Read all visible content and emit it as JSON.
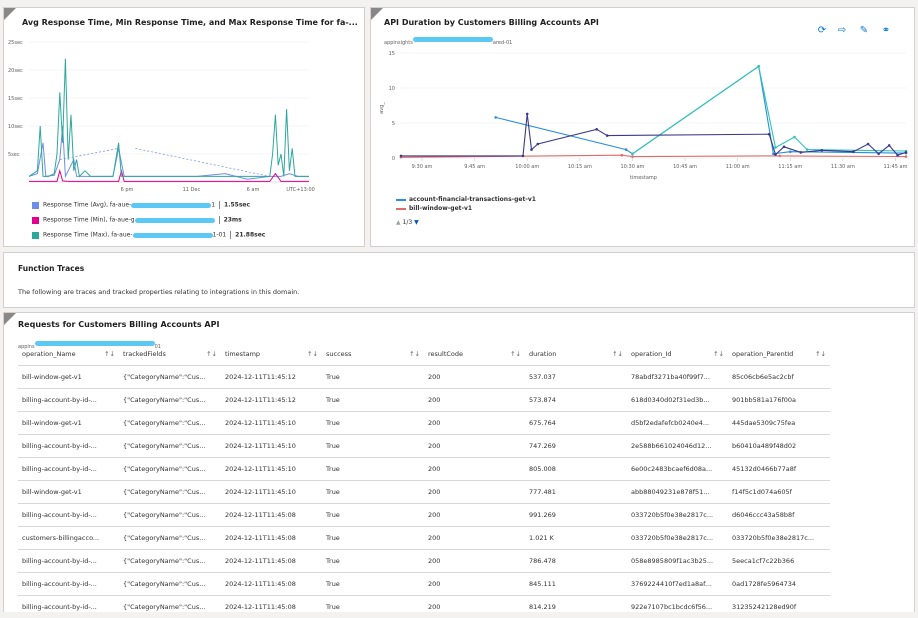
{
  "tile1": {
    "title": "Avg Response Time, Min Response Time, and Max Response Time for fa-...",
    "legend": [
      {
        "label": "Response Time (Avg), fa-aue-",
        "suffix": "1",
        "value": "1.55sec",
        "color": "#6d8ee8"
      },
      {
        "label": "Response Time (Min), fa-aue-g",
        "suffix": "",
        "value": "23ms",
        "color": "#e3008c"
      },
      {
        "label": "Response Time (Max), fa-aue-",
        "suffix": "1-01",
        "value": "21.88sec",
        "color": "#2ea89c"
      }
    ]
  },
  "tile2": {
    "title": "API Duration by Customers Billing Accounts API",
    "subtitle_prefix": "appinsights",
    "subtitle_suffix": "ared-01",
    "legend": [
      {
        "label": "account-financial-transactions-get-v1",
        "color": "#2a8de0"
      },
      {
        "label": "bill-window-get-v1",
        "color": "#e06b6b"
      }
    ],
    "pager": "1/3",
    "icons": [
      "refresh-icon",
      "share-icon",
      "edit-icon",
      "connect-icon"
    ]
  },
  "function_traces": {
    "title": "Function Traces",
    "description": "The following are traces and tracked properties relating to integrations in this domain."
  },
  "requests": {
    "title": "Requests for Customers Billing Accounts API",
    "subtitle_prefix": "appins",
    "subtitle_suffix": "01",
    "columns": [
      "operation_Name",
      "trackedFields",
      "timestamp",
      "success",
      "resultCode",
      "duration",
      "operation_Id",
      "operation_ParentId"
    ],
    "rows": [
      [
        "bill-window-get-v1",
        "{\"CategoryName\":\"Cus...",
        "2024-12-11T11:45:12",
        "True",
        "200",
        "537.037",
        "78abdf3271ba40f99f7...",
        "85c06cb6e5ac2cbf"
      ],
      [
        "billing-account-by-id-...",
        "{\"CategoryName\":\"Cus...",
        "2024-12-11T11:45:12",
        "True",
        "200",
        "573.874",
        "618d0340d02f31ed3b...",
        "901bb581a176f00a"
      ],
      [
        "bill-window-get-v1",
        "{\"CategoryName\":\"Cus...",
        "2024-12-11T11:45:10",
        "True",
        "200",
        "675.764",
        "d5bf2edafefcb0240e4...",
        "445dae5309c75fea"
      ],
      [
        "billing-account-by-id-...",
        "{\"CategoryName\":\"Cus...",
        "2024-12-11T11:45:10",
        "True",
        "200",
        "747.269",
        "2e588b661024046d12...",
        "b60410a489f48d02"
      ],
      [
        "billing-account-by-id-...",
        "{\"CategoryName\":\"Cus...",
        "2024-12-11T11:45:10",
        "True",
        "200",
        "805.008",
        "6e00c2483bcaef6d08a...",
        "45132d0466b77a8f"
      ],
      [
        "bill-window-get-v1",
        "{\"CategoryName\":\"Cus...",
        "2024-12-11T11:45:10",
        "True",
        "200",
        "777.481",
        "abb88049231e878f51...",
        "f14f5c1d074a605f"
      ],
      [
        "billing-account-by-id-...",
        "{\"CategoryName\":\"Cus...",
        "2024-12-11T11:45:08",
        "True",
        "200",
        "991.269",
        "033720b5f0e38e2817c...",
        "d6046ccc43a58b8f"
      ],
      [
        "customers-billingacco...",
        "{\"CategoryName\":\"Cus...",
        "2024-12-11T11:45:08",
        "True",
        "200",
        "1.021 K",
        "033720b5f0e38e2817c...",
        "033720b5f0e38e2817c..."
      ],
      [
        "billing-account-by-id-...",
        "{\"CategoryName\":\"Cus...",
        "2024-12-11T11:45:08",
        "True",
        "200",
        "786.478",
        "058e8985809f1ac3b25...",
        "5eeca1cf7c22b366"
      ],
      [
        "billing-account-by-id-...",
        "{\"CategoryName\":\"Cus...",
        "2024-12-11T11:45:08",
        "True",
        "200",
        "845.111",
        "3769224410f7ed1a8af...",
        "0ad1728fe5964734"
      ],
      [
        "billing-account-by-id-...",
        "{\"CategoryName\":\"Cus...",
        "2024-12-11T11:45:08",
        "True",
        "200",
        "814.219",
        "922e7107bc1bcdc6f56...",
        "31235242128ed90f"
      ]
    ]
  },
  "chart_data": [
    {
      "type": "line",
      "yticks": [
        "25sec",
        "20sec",
        "15sec",
        "10sec",
        "5sec"
      ],
      "xticks": [
        "6 pm",
        "11 Dec",
        "6 am",
        "UTC+13:00"
      ],
      "ylim": [
        0,
        25
      ],
      "series": [
        {
          "name": "Response Time (Avg)",
          "color": "#6d8ee8",
          "points": [
            [
              0,
              1
            ],
            [
              3,
              1.5
            ],
            [
              5,
              7
            ],
            [
              6,
              1
            ],
            [
              9,
              1.2
            ],
            [
              11,
              4
            ],
            [
              12,
              10
            ],
            [
              13,
              1
            ],
            [
              14,
              2
            ],
            [
              16,
              4
            ],
            [
              17,
              1
            ],
            [
              19,
              1
            ],
            [
              20,
              1
            ],
            [
              22,
              1
            ],
            [
              24,
              1
            ],
            [
              26,
              1
            ],
            [
              30,
              1
            ],
            [
              32,
              6
            ],
            [
              34,
              1
            ],
            [
              38,
              1
            ],
            [
              50,
              1
            ],
            [
              60,
              1
            ],
            [
              70,
              1.5
            ],
            [
              78,
              0.5
            ],
            [
              86,
              1
            ],
            [
              90,
              1
            ],
            [
              93,
              1.5
            ],
            [
              96,
              1
            ],
            [
              100,
              1
            ]
          ]
        },
        {
          "name": "Response Time (Min)",
          "color": "#e3008c",
          "points": [
            [
              0,
              0.1
            ],
            [
              10,
              0.1
            ],
            [
              11,
              2
            ],
            [
              12,
              0.2
            ],
            [
              14,
              0.1
            ],
            [
              20,
              0.1
            ],
            [
              32,
              0.1
            ],
            [
              33,
              2
            ],
            [
              34,
              0.1
            ],
            [
              60,
              0.1
            ],
            [
              86,
              0.1
            ],
            [
              88,
              1.5
            ],
            [
              90,
              0.1
            ],
            [
              100,
              0.1
            ]
          ]
        },
        {
          "name": "Response Time (Max)",
          "color": "#2ea89c",
          "points": [
            [
              0,
              1
            ],
            [
              3,
              2
            ],
            [
              4,
              10
            ],
            [
              5,
              1
            ],
            [
              7,
              1
            ],
            [
              9,
              1.5
            ],
            [
              10,
              5
            ],
            [
              11,
              16
            ],
            [
              12,
              7
            ],
            [
              13,
              22
            ],
            [
              14,
              4
            ],
            [
              15,
              12
            ],
            [
              16,
              2
            ],
            [
              17,
              4
            ],
            [
              18,
              1
            ],
            [
              20,
              2
            ],
            [
              22,
              1
            ],
            [
              26,
              1
            ],
            [
              30,
              1
            ],
            [
              32,
              7
            ],
            [
              33,
              1
            ],
            [
              40,
              1
            ],
            [
              50,
              1
            ],
            [
              60,
              1
            ],
            [
              70,
              1
            ],
            [
              86,
              1
            ],
            [
              87,
              5
            ],
            [
              88,
              12
            ],
            [
              89,
              3
            ],
            [
              90,
              5
            ],
            [
              91,
              1
            ],
            [
              92,
              13
            ],
            [
              93,
              2
            ],
            [
              94,
              6
            ],
            [
              95,
              1
            ],
            [
              96,
              1
            ],
            [
              100,
              1
            ]
          ]
        }
      ]
    },
    {
      "type": "line",
      "xlabel": "timestamp",
      "ylabel": "avg_",
      "ylim": [
        0,
        15
      ],
      "yticks": [
        0,
        5,
        10,
        15
      ],
      "xticks": [
        "9:30 am",
        "9:45 am",
        "10:00 am",
        "10:15 am",
        "10:30 am",
        "10:45 am",
        "11:00 am",
        "11:15 am",
        "11:30 am",
        "11:45 am"
      ],
      "xlim": [
        9.4,
        11.8
      ],
      "series": [
        {
          "name": "account-financial-transactions-get-v1",
          "color": "#2a8de0",
          "points": [
            [
              9.85,
              5.8
            ],
            [
              10.47,
              1.2
            ],
            [
              10.5,
              0.6
            ],
            [
              11.1,
              13.1
            ],
            [
              11.17,
              0.6
            ],
            [
              11.25,
              0.9
            ],
            [
              11.8,
              0.7
            ]
          ]
        },
        {
          "name": "bill-window-get-v1",
          "color": "#e06b6b",
          "points": [
            [
              9.4,
              0.1
            ],
            [
              10.45,
              0.4
            ],
            [
              10.5,
              0.2
            ],
            [
              11.2,
              0.3
            ],
            [
              11.8,
              0.2
            ]
          ]
        },
        {
          "name": "",
          "color": "#2ec4b6",
          "points": [
            [
              10.5,
              0.6
            ],
            [
              11.1,
              13.1
            ],
            [
              11.18,
              1.5
            ],
            [
              11.27,
              3.0
            ],
            [
              11.33,
              1.2
            ],
            [
              11.8,
              1.0
            ]
          ]
        },
        {
          "name": "",
          "color": "#3a3a8c",
          "points": [
            [
              9.4,
              0.3
            ],
            [
              9.98,
              0.3
            ],
            [
              10.0,
              6.3
            ],
            [
              10.02,
              1.2
            ],
            [
              10.05,
              2.0
            ],
            [
              10.33,
              4.1
            ],
            [
              10.38,
              3.2
            ],
            [
              11.15,
              3.4
            ],
            [
              11.18,
              0.5
            ],
            [
              11.22,
              1.6
            ],
            [
              11.3,
              0.8
            ],
            [
              11.4,
              1.1
            ],
            [
              11.55,
              0.9
            ],
            [
              11.62,
              2.0
            ],
            [
              11.67,
              0.6
            ],
            [
              11.72,
              1.8
            ],
            [
              11.76,
              0.4
            ],
            [
              11.8,
              0.8
            ]
          ]
        }
      ]
    }
  ]
}
